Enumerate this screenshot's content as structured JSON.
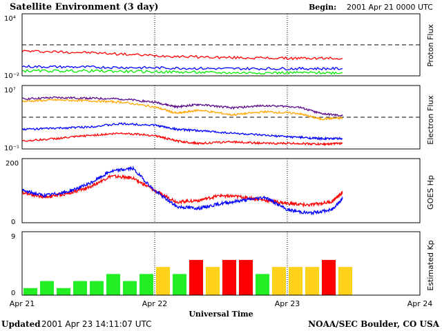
{
  "header": {
    "title": "Satellite Environment (3 day)",
    "begin_label": "Begin:",
    "begin_value": "2001 Apr 21 0000 UTC"
  },
  "footer": {
    "updated_label": "Updated",
    "updated_value": "2001 Apr 23 14:11:07 UTC",
    "credit": "NOAA/SEC Boulder, CO USA"
  },
  "x_axis": {
    "label": "Universal Time",
    "ticks": [
      "Apr 21",
      "Apr 22",
      "Apr 23",
      "Apr 24"
    ]
  },
  "colors": {
    "red": "#ff0000",
    "blue": "#0000ff",
    "green": "#00ee00",
    "orange": "#ffa500",
    "purple": "#5a0a8c",
    "kp_green": "#22ee22",
    "kp_yellow": "#ffd21a",
    "kp_red": "#ff0000"
  },
  "chart_data": [
    {
      "type": "line",
      "panel": "proton",
      "ylabel": "Proton Flux",
      "y_scale": "log",
      "ylim": [
        0.01,
        10000
      ],
      "tick_labels": [
        "10⁴",
        "10⁻²"
      ],
      "threshold": 10,
      "series": [
        {
          "color": "red",
          "hours": [
            0,
            12,
            24,
            36,
            48,
            58
          ],
          "values": [
            2.5,
            1.8,
            0.9,
            0.6,
            0.5,
            0.5
          ]
        },
        {
          "color": "blue",
          "hours": [
            0,
            12,
            24,
            36,
            48,
            58
          ],
          "values": [
            0.08,
            0.07,
            0.06,
            0.05,
            0.05,
            0.05
          ]
        },
        {
          "color": "green",
          "hours": [
            0,
            12,
            24,
            36,
            48,
            58
          ],
          "values": [
            0.03,
            0.03,
            0.025,
            0.02,
            0.02,
            0.02
          ]
        }
      ]
    },
    {
      "type": "line",
      "panel": "electron",
      "ylabel": "Electron Flux",
      "y_scale": "log",
      "ylim": [
        0.1,
        10000000
      ],
      "tick_labels": [
        "10⁷",
        "10⁻¹"
      ],
      "threshold": 1000,
      "series": [
        {
          "color": "purple",
          "hours": [
            0,
            6,
            12,
            18,
            24,
            28,
            32,
            38,
            44,
            50,
            54,
            58
          ],
          "values": [
            200000,
            300000,
            250000,
            200000,
            80000,
            20000,
            40000,
            15000,
            30000,
            20000,
            3000,
            1500
          ]
        },
        {
          "color": "orange",
          "hours": [
            0,
            6,
            12,
            18,
            24,
            28,
            32,
            38,
            44,
            50,
            54,
            58
          ],
          "values": [
            100000,
            150000,
            120000,
            80000,
            20000,
            3000,
            8000,
            2000,
            5000,
            3000,
            600,
            800
          ]
        },
        {
          "color": "blue",
          "hours": [
            0,
            6,
            12,
            18,
            24,
            28,
            32,
            38,
            44,
            50,
            54,
            58
          ],
          "values": [
            30,
            40,
            60,
            150,
            100,
            30,
            20,
            10,
            5,
            3,
            2,
            2
          ]
        },
        {
          "color": "red",
          "hours": [
            0,
            6,
            12,
            18,
            24,
            28,
            32,
            38,
            44,
            50,
            54,
            58
          ],
          "values": [
            1,
            2,
            5,
            10,
            5,
            1,
            0.5,
            0.8,
            0.5,
            0.5,
            0.4,
            0.5
          ]
        }
      ]
    },
    {
      "type": "line",
      "panel": "hp",
      "ylabel": "GOES Hp",
      "ylim": [
        0,
        200
      ],
      "tick_labels": [
        "200",
        "0"
      ],
      "series": [
        {
          "color": "red",
          "hours": [
            0,
            4,
            8,
            12,
            16,
            20,
            24,
            28,
            32,
            36,
            40,
            44,
            48,
            52,
            56,
            58
          ],
          "values": [
            95,
            80,
            90,
            110,
            145,
            140,
            100,
            65,
            70,
            85,
            80,
            70,
            60,
            55,
            65,
            95
          ]
        },
        {
          "color": "blue",
          "hours": [
            0,
            4,
            8,
            12,
            16,
            20,
            24,
            28,
            32,
            36,
            40,
            44,
            48,
            52,
            56,
            58
          ],
          "values": [
            100,
            85,
            95,
            120,
            160,
            170,
            100,
            50,
            45,
            60,
            70,
            80,
            40,
            30,
            40,
            75
          ]
        }
      ]
    },
    {
      "type": "bar",
      "panel": "kp",
      "ylabel": "Estimated Kp",
      "ylim": [
        0,
        9
      ],
      "tick_labels": [
        "9",
        "0"
      ],
      "bar_width_hours": 3,
      "bars": [
        1,
        2,
        1,
        2,
        2,
        3,
        2,
        3,
        4,
        3,
        5,
        4,
        5,
        5,
        3,
        4,
        4,
        4,
        5,
        4
      ],
      "bar_colors": [
        "kp_green",
        "kp_green",
        "kp_green",
        "kp_green",
        "kp_green",
        "kp_green",
        "kp_green",
        "kp_green",
        "kp_yellow",
        "kp_green",
        "kp_red",
        "kp_yellow",
        "kp_red",
        "kp_red",
        "kp_green",
        "kp_yellow",
        "kp_yellow",
        "kp_yellow",
        "kp_red",
        "kp_yellow"
      ]
    }
  ]
}
